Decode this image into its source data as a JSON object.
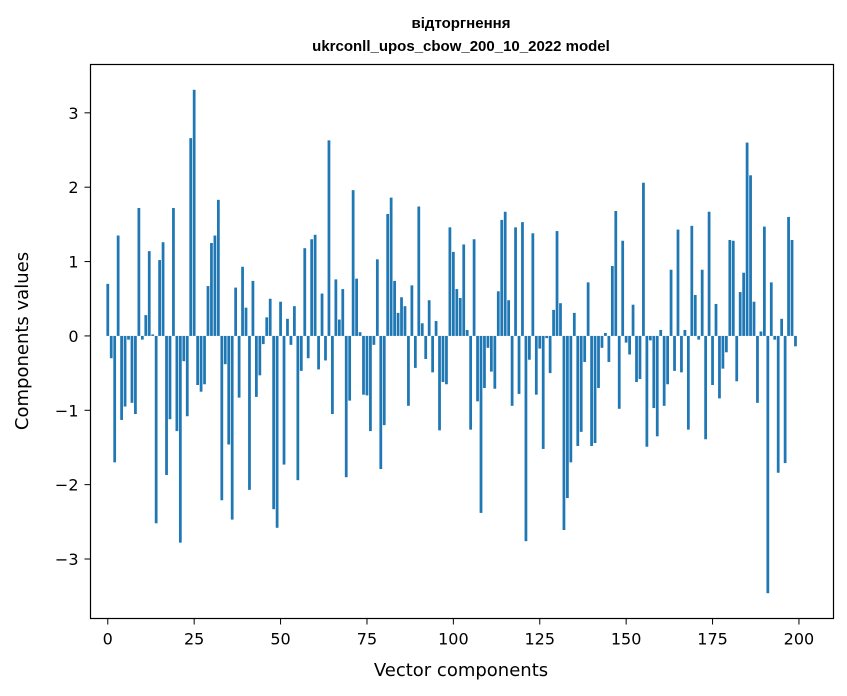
{
  "chart_data": {
    "type": "bar",
    "title": "відторгнення",
    "subtitle": "ukrconll_upos_cbow_200_10_2022 model",
    "xlabel": "Vector components",
    "ylabel": "Components values",
    "xlim": [
      -5,
      210
    ],
    "ylim": [
      -3.8,
      3.65
    ],
    "xticks": [
      0,
      25,
      50,
      75,
      100,
      125,
      150,
      175,
      200
    ],
    "yticks": [
      -3,
      -2,
      -1,
      0,
      1,
      2,
      3
    ],
    "ytick_labels": [
      "−3",
      "−2",
      "−1",
      "0",
      "1",
      "2",
      "3"
    ],
    "color": "#1f77b4",
    "values": [
      0.7,
      -0.3,
      -1.7,
      1.35,
      -1.13,
      -0.95,
      -0.05,
      -0.9,
      -1.05,
      1.72,
      -0.05,
      0.28,
      1.14,
      0.02,
      -2.52,
      1.02,
      1.26,
      -1.87,
      -1.12,
      1.72,
      -1.28,
      -2.78,
      -0.34,
      -1.08,
      2.66,
      3.31,
      -0.66,
      -0.75,
      -0.65,
      0.67,
      1.25,
      1.35,
      1.83,
      -2.21,
      -0.38,
      -1.46,
      -2.47,
      0.65,
      -0.83,
      0.93,
      0.38,
      -2.07,
      0.74,
      -0.82,
      -0.53,
      -0.11,
      0.25,
      0.5,
      -2.33,
      -2.58,
      0.46,
      -1.73,
      0.23,
      -0.12,
      0.4,
      -1.94,
      -0.47,
      1.18,
      -0.3,
      1.3,
      1.36,
      -0.45,
      0.57,
      -0.33,
      2.63,
      -1.05,
      0.76,
      0.22,
      0.63,
      -1.9,
      -0.87,
      1.96,
      0.77,
      0.05,
      -0.79,
      -0.8,
      -1.28,
      -0.12,
      1.03,
      -1.79,
      -1.2,
      1.64,
      1.86,
      0.74,
      0.31,
      0.52,
      0.4,
      -0.94,
      0.68,
      -0.43,
      1.74,
      0.17,
      -0.31,
      0.48,
      -0.49,
      0.2,
      -1.27,
      -0.62,
      -0.65,
      1.46,
      1.13,
      0.63,
      0.51,
      1.23,
      0.08,
      -1.26,
      1.3,
      -0.88,
      -2.38,
      -0.7,
      -0.16,
      -0.48,
      -0.71,
      0.6,
      1.56,
      1.67,
      0.48,
      -0.94,
      1.46,
      -0.78,
      1.53,
      -2.76,
      -0.32,
      1.38,
      -0.79,
      -0.17,
      -1.52,
      -0.03,
      -0.5,
      0.35,
      1.41,
      0.44,
      -2.61,
      -2.18,
      -1.7,
      0.31,
      -1.48,
      -1.29,
      -0.35,
      0.72,
      -1.48,
      -1.44,
      -0.7,
      -0.16,
      0.04,
      -0.35,
      0.94,
      1.68,
      -0.98,
      1.28,
      -0.09,
      -0.25,
      0.42,
      -0.62,
      -0.58,
      2.06,
      -1.49,
      -0.06,
      -0.97,
      -1.35,
      0.08,
      -0.94,
      -0.65,
      0.89,
      -0.47,
      1.43,
      -0.49,
      0.08,
      -1.26,
      1.48,
      0.55,
      -0.05,
      0.89,
      -1.39,
      1.67,
      -0.66,
      0.43,
      -0.84,
      -0.44,
      -0.22,
      1.29,
      1.28,
      -0.61,
      0.59,
      0.85,
      2.6,
      2.16,
      0.46,
      -0.9,
      0.06,
      1.47,
      -3.46,
      0.72,
      -0.05,
      -1.84,
      0.23,
      -1.71,
      1.6,
      1.29,
      -0.14
    ]
  }
}
